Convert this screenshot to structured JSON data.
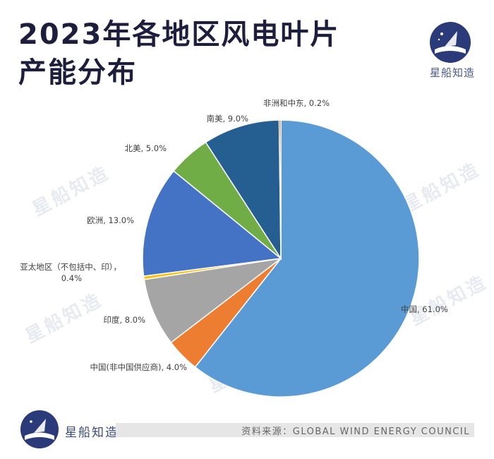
{
  "title": {
    "line1": "2023年各地区风电叶片",
    "line2": "产能分布"
  },
  "brand": {
    "name": "星船知造",
    "watermark": "星船知造"
  },
  "source": "资料来源：GLOBAL WIND ENERGY COUNCIL",
  "chart_data": {
    "type": "pie",
    "title": "",
    "unit": "%",
    "slices": [
      {
        "label": "中国",
        "display": "中国, 61.0%",
        "value": 61.0,
        "color": "#5b9bd5"
      },
      {
        "label": "中国(非中国供应商)",
        "display": "中国(非中国供应商), 4.0%",
        "value": 4.0,
        "color": "#ed7d31"
      },
      {
        "label": "印度",
        "display": "印度, 8.0%",
        "value": 8.0,
        "color": "#a5a5a5"
      },
      {
        "label": "亚太地区（不包括中、印）",
        "display_line1": "亚太地区（不包括中、印），",
        "display_line2": "0.4%",
        "value": 0.4,
        "color": "#ffc000"
      },
      {
        "label": "欧洲",
        "display": "欧洲, 13.0%",
        "value": 13.0,
        "color": "#4472c4"
      },
      {
        "label": "北美",
        "display": "北美, 5.0%",
        "value": 5.0,
        "color": "#70ad47"
      },
      {
        "label": "南美",
        "display": "南美, 9.0%",
        "value": 9.0,
        "color": "#255e91"
      },
      {
        "label": "非洲和中东",
        "display": "非洲和中东, 0.2%",
        "value": 0.2,
        "color": "#9e480e"
      }
    ]
  }
}
